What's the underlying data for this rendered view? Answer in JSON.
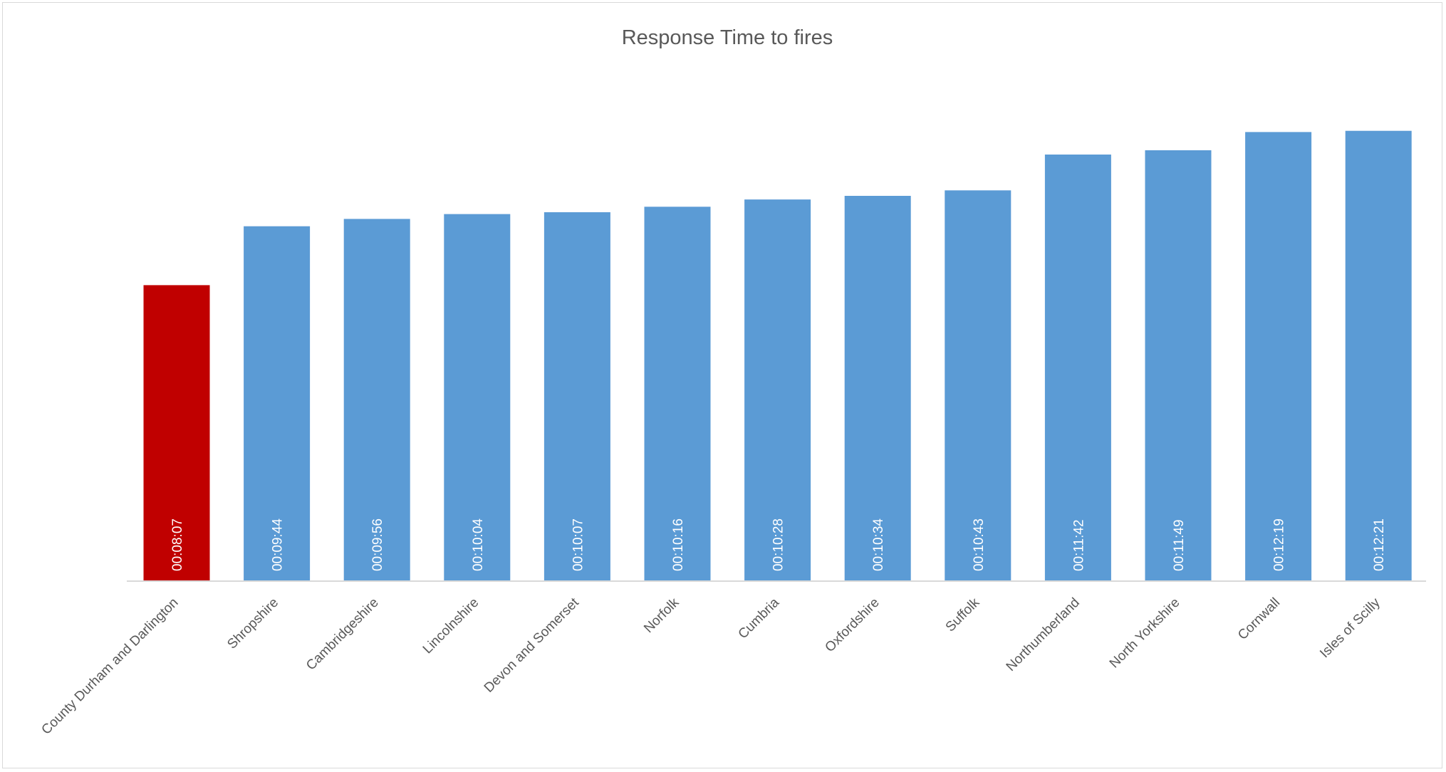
{
  "chart_data": {
    "type": "bar",
    "title": "Response  Time to fires",
    "xlabel": "",
    "ylabel": "",
    "grid": false,
    "legend": "none",
    "ylim": [
      0,
      900
    ],
    "categories": [
      "County Durham and Darlington",
      "Shropshire",
      "Cambridgeshire",
      "Lincolnshire",
      "Devon and Somerset",
      "Norfolk",
      "Cumbria",
      "Oxfordshire",
      "Suffolk",
      "Northumberland",
      "North Yorkshire",
      "Cornwall",
      "Isles of Scilly"
    ],
    "series": [
      {
        "values": [
          487,
          584,
          596,
          604,
          607,
          616,
          628,
          634,
          643,
          702,
          709,
          739,
          741
        ],
        "labels": [
          "00:08:07",
          "00:09:44",
          "00:09:56",
          "00:10:04",
          "00:10:07",
          "00:10:16",
          "00:10:28",
          "00:10:34",
          "00:10:43",
          "00:11:42",
          "00:11:49",
          "00:12:19",
          "00:12:21"
        ]
      }
    ],
    "colors": {
      "highlight": "#c00000",
      "bar": "#5b9bd5",
      "axis": "#d9d9d9"
    }
  }
}
